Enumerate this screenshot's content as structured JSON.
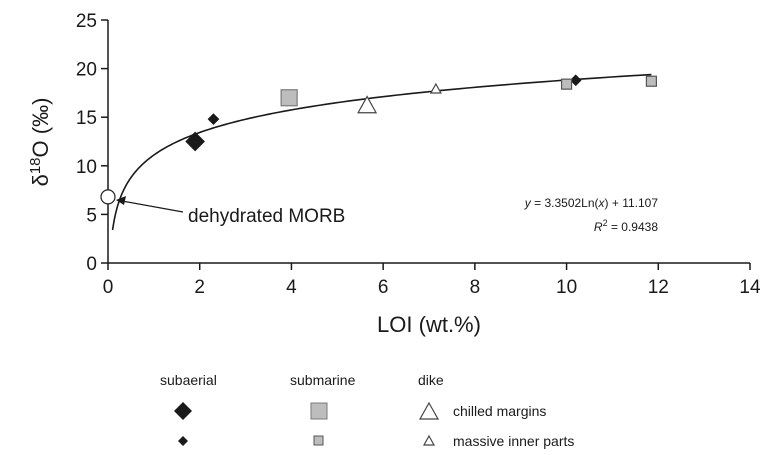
{
  "chart_data": {
    "type": "scatter",
    "xlabel": "LOI (wt.%)",
    "ylabel": {
      "prefix": "δ",
      "sup": "18",
      "suffix": "O (‰)"
    },
    "xlim": [
      0,
      14
    ],
    "ylim": [
      0,
      25
    ],
    "xticks": [
      0,
      2,
      4,
      6,
      8,
      10,
      12,
      14
    ],
    "yticks": [
      0,
      5,
      10,
      15,
      20,
      25
    ],
    "grid": false,
    "legend_position": "bottom",
    "series": [
      {
        "key": "subaerial_large",
        "marker": "diamond",
        "size": "large",
        "fill": "#1a1a1a",
        "stroke": "#1a1a1a",
        "points": [
          [
            1.9,
            12.5
          ]
        ]
      },
      {
        "key": "subaerial_small",
        "marker": "diamond",
        "size": "small",
        "fill": "#1a1a1a",
        "stroke": "#1a1a1a",
        "points": [
          [
            2.3,
            14.8
          ],
          [
            10.2,
            18.8
          ]
        ]
      },
      {
        "key": "submarine_large",
        "marker": "square",
        "size": "large",
        "fill": "#bdbdbd",
        "stroke": "#7a7a7a",
        "points": [
          [
            3.95,
            17.0
          ]
        ]
      },
      {
        "key": "submarine_small",
        "marker": "square",
        "size": "small",
        "fill": "#bdbdbd",
        "stroke": "#555555",
        "points": [
          [
            10.0,
            18.4
          ],
          [
            11.85,
            18.7
          ]
        ]
      },
      {
        "key": "dike_chilled",
        "marker": "triangle",
        "size": "large",
        "fill": "#ffffff",
        "stroke": "#444444",
        "points": [
          [
            5.65,
            16.2
          ]
        ]
      },
      {
        "key": "dike_massive",
        "marker": "triangle",
        "size": "small",
        "fill": "#ffffff",
        "stroke": "#444444",
        "points": [
          [
            7.15,
            17.9
          ]
        ]
      },
      {
        "key": "dehydrated_morb",
        "marker": "circle",
        "size": "large",
        "fill": "#ffffff",
        "stroke": "#222222",
        "points": [
          [
            0.0,
            6.8
          ]
        ]
      }
    ],
    "fit": {
      "type": "logarithmic",
      "a": 3.3502,
      "b": 11.107,
      "x_range": [
        0.1,
        11.85
      ],
      "equation_prefix": "y",
      "equation_body": " = 3.3502Ln(",
      "equation_var": "x",
      "equation_tail": ") + 11.107",
      "r2_label": "R",
      "r2_sup": "2",
      "r2_value": " = 0.9438"
    },
    "annotation": {
      "text": "dehydrated MORB",
      "points_to": [
        0.0,
        6.8
      ]
    },
    "legend": {
      "columns": [
        "subaerial",
        "submarine",
        "dike"
      ],
      "rows": [
        "chilled margins",
        "massive inner parts"
      ]
    }
  }
}
